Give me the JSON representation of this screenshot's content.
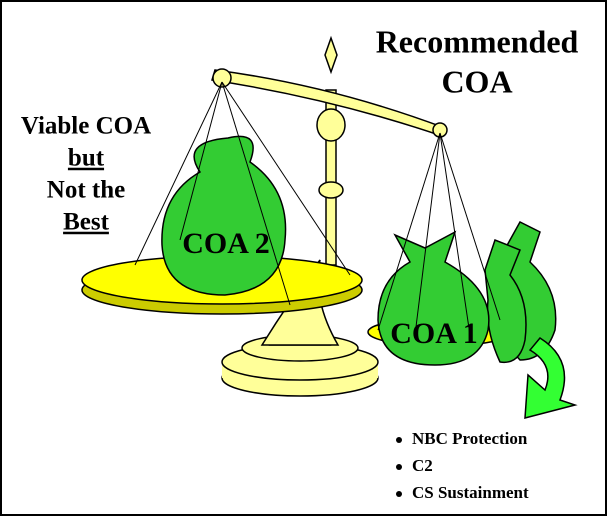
{
  "headline": [
    "Recommended",
    "COA"
  ],
  "side_note": [
    "Viable COA",
    "but",
    "Not the",
    "Best"
  ],
  "bags": [
    {
      "label": "COA 2"
    },
    {
      "label": "COA 1"
    }
  ],
  "factors": [
    "NBC Protection",
    "C2",
    "CS Sustainment"
  ]
}
